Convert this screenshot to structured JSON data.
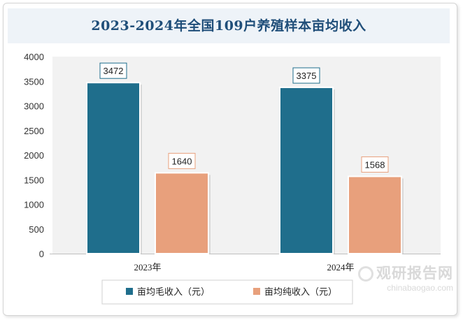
{
  "chart_data": {
    "type": "bar",
    "title": "2023-2024年全国109户养殖样本亩均收入",
    "categories": [
      "2023年",
      "2024年"
    ],
    "series": [
      {
        "name": "亩均毛收入（元）",
        "values": [
          3472,
          3375
        ],
        "color": "#1f6e8c"
      },
      {
        "name": "亩均纯收入（元）",
        "values": [
          1640,
          1568
        ],
        "color": "#e8a07c"
      }
    ],
    "ylim": [
      0,
      4000
    ],
    "yticks": [
      0,
      500,
      1000,
      1500,
      2000,
      2500,
      3000,
      3500,
      4000
    ],
    "grid": false,
    "legend": "bottom",
    "data_labels": [
      "3472",
      "1640",
      "3375",
      "1568"
    ]
  },
  "watermark": {
    "main": "观研报告网",
    "sub": "chinabaogao.com"
  },
  "colors": {
    "plot_background": "#f2f2f2",
    "title_color": "#1f4e79"
  }
}
